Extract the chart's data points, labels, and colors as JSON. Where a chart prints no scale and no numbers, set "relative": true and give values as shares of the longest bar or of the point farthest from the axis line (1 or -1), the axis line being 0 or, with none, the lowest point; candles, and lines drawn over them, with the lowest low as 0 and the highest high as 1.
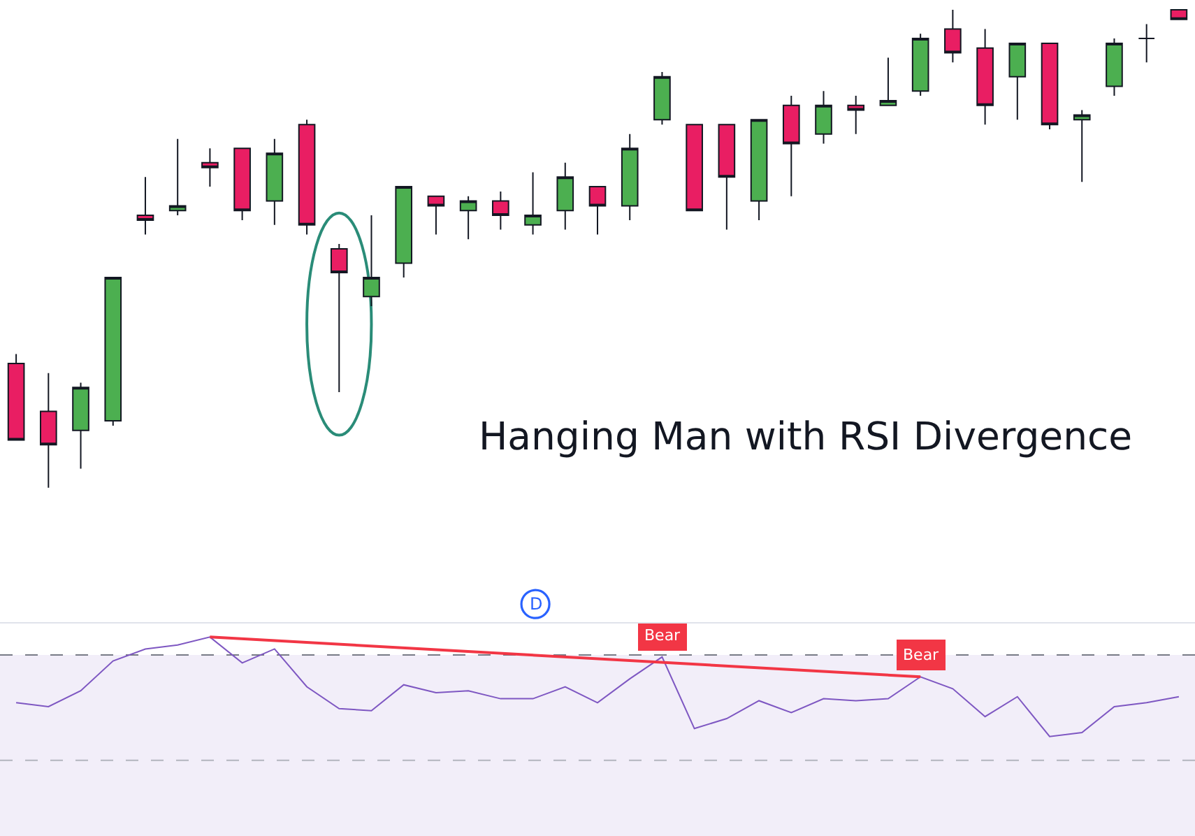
{
  "chart_data": [
    {
      "type": "candlestick",
      "title": "Hanging Man with RSI Divergence",
      "relative": true,
      "categories": [
        null,
        null,
        null,
        null,
        null,
        null,
        null,
        null,
        null,
        null,
        null,
        null,
        null,
        null,
        null,
        null,
        null,
        null,
        null,
        null,
        null,
        null,
        null,
        null,
        null,
        null,
        null,
        null,
        null,
        null,
        null,
        null,
        null,
        null,
        null,
        null,
        null
      ],
      "ohlc": [
        [
          0.26,
          0.28,
          0.1,
          0.1
        ],
        [
          0.16,
          0.24,
          0,
          0.09
        ],
        [
          0.12,
          0.22,
          0.04,
          0.21
        ],
        [
          0.14,
          0.44,
          0.13,
          0.44
        ],
        [
          0.57,
          0.65,
          0.53,
          0.56
        ],
        [
          0.58,
          0.73,
          0.57,
          0.59
        ],
        [
          0.68,
          0.71,
          0.63,
          0.67
        ],
        [
          0.71,
          0.71,
          0.56,
          0.58
        ],
        [
          0.6,
          0.73,
          0.55,
          0.7
        ],
        [
          0.76,
          0.77,
          0.53,
          0.55
        ],
        [
          0.5,
          0.51,
          0.2,
          0.45
        ],
        [
          0.4,
          0.57,
          0.38,
          0.44
        ],
        [
          0.47,
          0.63,
          0.44,
          0.63
        ],
        [
          0.61,
          0.61,
          0.53,
          0.59
        ],
        [
          0.58,
          0.61,
          0.52,
          0.6
        ],
        [
          0.6,
          0.62,
          0.54,
          0.57
        ],
        [
          0.55,
          0.66,
          0.53,
          0.57
        ],
        [
          0.58,
          0.68,
          0.54,
          0.65
        ],
        [
          0.63,
          0.63,
          0.53,
          0.59
        ],
        [
          0.59,
          0.74,
          0.56,
          0.71
        ],
        [
          0.77,
          0.87,
          0.76,
          0.86
        ],
        [
          0.76,
          0.76,
          0.58,
          0.58
        ],
        [
          0.76,
          0.76,
          0.54,
          0.65
        ],
        [
          0.6,
          0.77,
          0.56,
          0.77
        ],
        [
          0.8,
          0.82,
          0.61,
          0.72
        ],
        [
          0.74,
          0.83,
          0.72,
          0.8
        ],
        [
          0.8,
          0.82,
          0.74,
          0.79
        ],
        [
          0.8,
          0.9,
          0.8,
          0.81
        ],
        [
          0.83,
          0.95,
          0.82,
          0.94
        ],
        [
          0.96,
          1,
          0.89,
          0.91
        ],
        [
          0.92,
          0.96,
          0.76,
          0.8
        ],
        [
          0.86,
          0.93,
          0.77,
          0.93
        ],
        [
          0.93,
          0.93,
          0.75,
          0.76
        ],
        [
          0.77,
          0.79,
          0.64,
          0.78
        ],
        [
          0.84,
          0.94,
          0.82,
          0.93
        ],
        [
          0.94,
          0.97,
          0.89,
          0.94
        ],
        [
          1,
          1,
          0.98,
          0.98
        ]
      ],
      "colors": [
        "#e91e63",
        "#e91e63",
        "#4caf50",
        "#4caf50",
        "#e91e63",
        "#4caf50",
        "#e91e63",
        "#e91e63",
        "#4caf50",
        "#e91e63",
        "#e91e63",
        "#4caf50",
        "#4caf50",
        "#e91e63",
        "#4caf50",
        "#e91e63",
        "#4caf50",
        "#4caf50",
        "#e91e63",
        "#4caf50",
        "#4caf50",
        "#e91e63",
        "#e91e63",
        "#4caf50",
        "#e91e63",
        "#4caf50",
        "#e91e63",
        "#4caf50",
        "#4caf50",
        "#e91e63",
        "#e91e63",
        "#4caf50",
        "#e91e63",
        "#4caf50",
        "#4caf50",
        "#131722",
        "#e91e63"
      ],
      "annotations": [
        "D"
      ]
    },
    {
      "type": "line",
      "relative": true,
      "categories": [
        null,
        null,
        null,
        null,
        null,
        null,
        null,
        null,
        null,
        null,
        null,
        null,
        null,
        null,
        null,
        null,
        null,
        null,
        null,
        null,
        null,
        null,
        null,
        null,
        null,
        null,
        null,
        null,
        null,
        null,
        null,
        null,
        null,
        null,
        null,
        null,
        null
      ],
      "series": [
        {
          "color": "#7e57c2",
          "values": [
            0.67,
            0.65,
            0.73,
            0.88,
            0.94,
            0.96,
            1.0,
            0.87,
            0.94,
            0.75,
            0.64,
            0.63,
            0.76,
            0.72,
            0.73,
            0.69,
            0.69,
            0.75,
            0.67,
            0.79,
            0.9,
            0.54,
            0.59,
            0.68,
            0.62,
            0.69,
            0.68,
            0.69,
            0.8,
            0.74,
            0.6,
            0.7,
            0.5,
            0.52,
            0.65,
            0.67,
            0.7
          ]
        },
        {
          "color": "#f23645",
          "values": [
            null,
            null,
            null,
            null,
            null,
            null,
            1.0,
            null,
            null,
            null,
            null,
            null,
            null,
            null,
            null,
            null,
            null,
            null,
            null,
            null,
            null,
            null,
            null,
            null,
            null,
            null,
            null,
            null,
            0.8,
            null,
            null,
            null,
            null,
            null,
            null,
            null,
            null
          ]
        }
      ],
      "ref_lines": [
        {
          "axis": "y",
          "value": 0.91,
          "color": "#787b86",
          "line_style": "dashed"
        },
        {
          "axis": "y",
          "value": 0.38,
          "color": "#b2b5be",
          "line_style": "dashed"
        }
      ],
      "bands": [
        {
          "axis": "y",
          "from": 0,
          "to": 0.91,
          "color": "#f2eef9"
        }
      ],
      "annotations": [
        {
          "text": "Bear",
          "y": 0.9
        },
        {
          "text": "Bear",
          "y": 0.8
        }
      ]
    }
  ]
}
